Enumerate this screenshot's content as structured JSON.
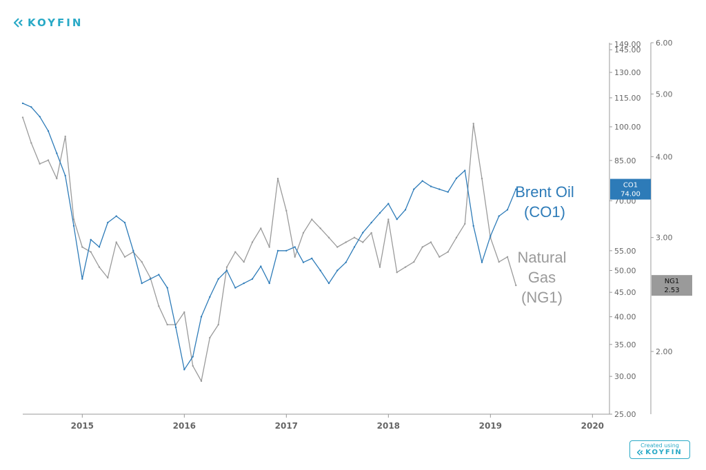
{
  "brand": {
    "logo_text": "KOYFIN",
    "color": "#28a9c6"
  },
  "footer": {
    "created_using": "Created using",
    "logo_text": "KOYFIN"
  },
  "chart_data": {
    "type": "line",
    "x_range": [
      "2014-06",
      "2020-03"
    ],
    "x_ticks": [
      "2015",
      "2016",
      "2017",
      "2018",
      "2019",
      "2020"
    ],
    "y_left": {
      "scale": "log",
      "range": [
        25,
        150
      ],
      "tick_labels": [
        "149.00",
        "145.00",
        "130.00",
        "115.00",
        "100.00",
        "85.00",
        "70.00",
        "55.00",
        "50.00",
        "45.00",
        "40.00",
        "35.00",
        "30.00",
        "25.00"
      ]
    },
    "y_right": {
      "scale": "log",
      "range": [
        1.6,
        6.0
      ],
      "tick_labels": [
        "6.00",
        "5.00",
        "4.00",
        "3.00",
        "2.00"
      ]
    },
    "series": [
      {
        "name": "Brent Oil (CO1)",
        "ticker": "CO1",
        "axis": "left",
        "color": "#2d7bb8",
        "last_value": "74.00",
        "x": [
          "2014-06",
          "2014-07",
          "2014-08",
          "2014-09",
          "2014-10",
          "2014-11",
          "2014-12",
          "2015-01",
          "2015-02",
          "2015-03",
          "2015-04",
          "2015-05",
          "2015-06",
          "2015-07",
          "2015-08",
          "2015-09",
          "2015-10",
          "2015-11",
          "2015-12",
          "2016-01",
          "2016-02",
          "2016-03",
          "2016-04",
          "2016-05",
          "2016-06",
          "2016-07",
          "2016-08",
          "2016-09",
          "2016-10",
          "2016-11",
          "2016-12",
          "2017-01",
          "2017-02",
          "2017-03",
          "2017-04",
          "2017-05",
          "2017-06",
          "2017-07",
          "2017-08",
          "2017-09",
          "2017-10",
          "2017-11",
          "2017-12",
          "2018-01",
          "2018-02",
          "2018-03",
          "2018-04",
          "2018-05",
          "2018-06",
          "2018-07",
          "2018-08",
          "2018-09",
          "2018-10",
          "2018-11",
          "2018-12",
          "2019-01",
          "2019-02",
          "2019-03",
          "2019-04"
        ],
        "values": [
          112,
          110,
          105,
          98,
          88,
          79,
          62,
          48,
          58,
          56,
          63,
          65,
          63,
          55,
          47,
          48,
          49,
          46,
          38,
          31,
          33,
          40,
          44,
          48,
          50,
          46,
          47,
          48,
          51,
          47,
          55,
          55,
          56,
          52,
          53,
          50,
          47,
          50,
          52,
          56,
          60,
          63,
          66,
          69,
          64,
          67,
          74,
          77,
          75,
          74,
          73,
          78,
          81,
          62,
          52,
          59,
          65,
          67,
          74
        ]
      },
      {
        "name": "Natural Gas (NG1)",
        "ticker": "NG1",
        "axis": "right",
        "color": "#9a9a9a",
        "last_value": "2.53",
        "x": [
          "2014-06",
          "2014-07",
          "2014-08",
          "2014-09",
          "2014-10",
          "2014-11",
          "2014-12",
          "2015-01",
          "2015-02",
          "2015-03",
          "2015-04",
          "2015-05",
          "2015-06",
          "2015-07",
          "2015-08",
          "2015-09",
          "2015-10",
          "2015-11",
          "2015-12",
          "2016-01",
          "2016-02",
          "2016-03",
          "2016-04",
          "2016-05",
          "2016-06",
          "2016-07",
          "2016-08",
          "2016-09",
          "2016-10",
          "2016-11",
          "2016-12",
          "2017-01",
          "2017-02",
          "2017-03",
          "2017-04",
          "2017-05",
          "2017-06",
          "2017-07",
          "2017-08",
          "2017-09",
          "2017-10",
          "2017-11",
          "2017-12",
          "2018-01",
          "2018-02",
          "2018-03",
          "2018-04",
          "2018-05",
          "2018-06",
          "2018-07",
          "2018-08",
          "2018-09",
          "2018-10",
          "2018-11",
          "2018-12",
          "2019-01",
          "2019-02",
          "2019-03",
          "2019-04"
        ],
        "values": [
          4.6,
          4.2,
          3.9,
          3.95,
          3.7,
          4.3,
          3.2,
          2.9,
          2.85,
          2.7,
          2.6,
          2.95,
          2.8,
          2.85,
          2.75,
          2.6,
          2.35,
          2.2,
          2.2,
          2.3,
          1.9,
          1.8,
          2.1,
          2.2,
          2.7,
          2.85,
          2.75,
          2.95,
          3.1,
          2.9,
          3.7,
          3.3,
          2.8,
          3.05,
          3.2,
          3.1,
          3.0,
          2.9,
          2.95,
          3.0,
          2.95,
          3.05,
          2.7,
          3.2,
          2.65,
          2.7,
          2.75,
          2.9,
          2.95,
          2.8,
          2.85,
          3.0,
          3.15,
          4.5,
          3.7,
          3.0,
          2.75,
          2.8,
          2.53
        ]
      }
    ],
    "annotations": [
      {
        "lines": [
          "Brent Oil",
          "(CO1)"
        ],
        "color": "#2d7bb8"
      },
      {
        "lines": [
          "Natural",
          "Gas",
          "(NG1)"
        ],
        "color": "#9a9a9a"
      }
    ],
    "grid": false,
    "legend": "none"
  }
}
